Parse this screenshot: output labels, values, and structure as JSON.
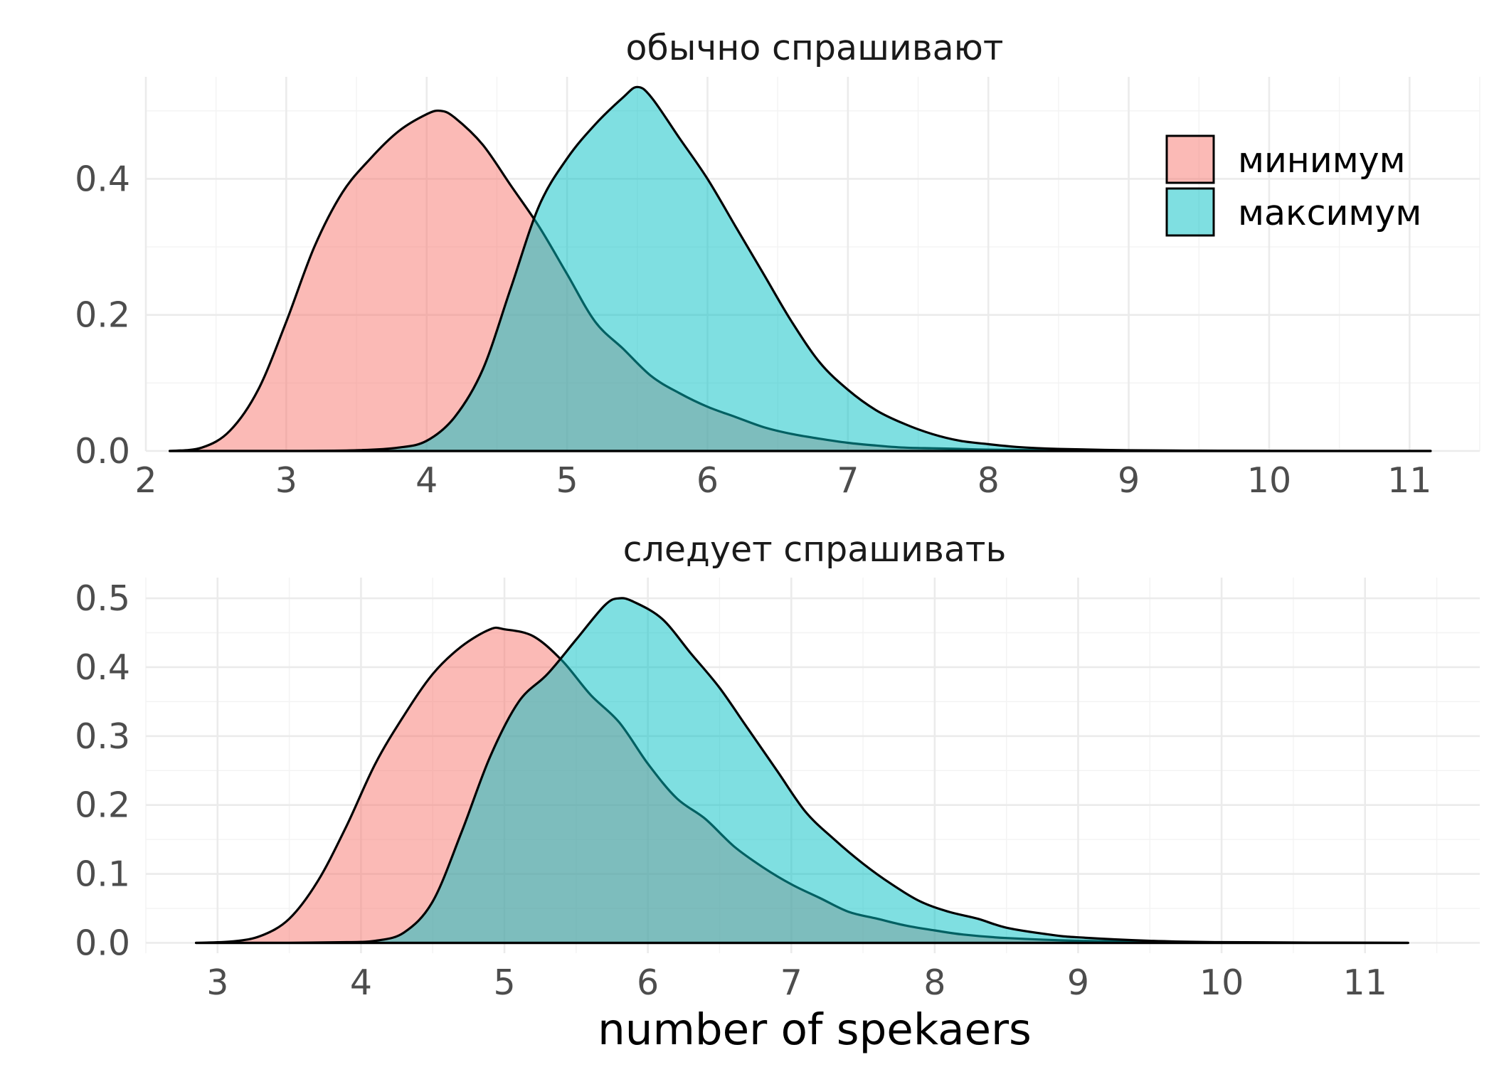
{
  "chart_data": {
    "type": "area",
    "xlabel": "number of spekaers",
    "legend": {
      "position": "top-right of first panel",
      "entries": [
        {
          "label": "минимум",
          "color": "#F8766D"
        },
        {
          "label": "максимум",
          "color": "#00BFC4"
        }
      ]
    },
    "grid": true,
    "panels": [
      {
        "title": "обычно спрашивают",
        "xlim": [
          2.0,
          11.5
        ],
        "ylim": [
          0.0,
          0.55
        ],
        "x_ticks": [
          2,
          3,
          4,
          5,
          6,
          7,
          8,
          9,
          10,
          11
        ],
        "y_ticks": [
          0.0,
          0.2,
          0.4
        ],
        "series": [
          {
            "name": "минимум",
            "color": "#F8766D",
            "x": [
              2.17,
              2.4,
              2.6,
              2.8,
              3.0,
              3.2,
              3.4,
              3.6,
              3.8,
              4.0,
              4.1,
              4.2,
              4.4,
              4.6,
              4.8,
              5.0,
              5.2,
              5.4,
              5.6,
              5.8,
              6.0,
              6.2,
              6.4,
              6.6,
              6.8,
              7.0,
              7.2,
              7.4,
              7.6,
              7.8,
              8.0,
              8.5,
              9.0,
              9.5,
              10.0,
              11.15
            ],
            "y": [
              0.0,
              0.005,
              0.03,
              0.09,
              0.19,
              0.3,
              0.38,
              0.43,
              0.47,
              0.495,
              0.5,
              0.49,
              0.45,
              0.39,
              0.33,
              0.26,
              0.19,
              0.15,
              0.11,
              0.085,
              0.065,
              0.05,
              0.035,
              0.025,
              0.018,
              0.012,
              0.008,
              0.005,
              0.004,
              0.003,
              0.002,
              0.001,
              0.0005,
              0.0002,
              0.0,
              0.0
            ]
          },
          {
            "name": "максимум",
            "color": "#00BFC4",
            "x": [
              2.17,
              3.0,
              3.5,
              3.8,
              4.0,
              4.2,
              4.4,
              4.6,
              4.8,
              5.0,
              5.2,
              5.4,
              5.5,
              5.6,
              5.8,
              6.0,
              6.2,
              6.4,
              6.6,
              6.8,
              7.0,
              7.2,
              7.4,
              7.6,
              7.8,
              8.0,
              8.2,
              8.5,
              9.0,
              9.5,
              10.0,
              11.15
            ],
            "y": [
              0.0,
              0.0,
              0.001,
              0.005,
              0.015,
              0.05,
              0.12,
              0.24,
              0.36,
              0.43,
              0.48,
              0.52,
              0.535,
              0.52,
              0.46,
              0.4,
              0.33,
              0.26,
              0.19,
              0.13,
              0.09,
              0.06,
              0.04,
              0.025,
              0.015,
              0.01,
              0.006,
              0.003,
              0.001,
              0.0005,
              0.0002,
              0.0
            ]
          }
        ]
      },
      {
        "title": "следует спрашивать",
        "xlim": [
          2.5,
          11.8
        ],
        "ylim": [
          -0.015,
          0.53
        ],
        "x_ticks": [
          3,
          4,
          5,
          6,
          7,
          8,
          9,
          10,
          11
        ],
        "y_ticks": [
          0.0,
          0.1,
          0.2,
          0.3,
          0.4,
          0.5
        ],
        "series": [
          {
            "name": "минимум",
            "color": "#F8766D",
            "x": [
              2.85,
              3.1,
              3.3,
              3.5,
              3.7,
              3.9,
              4.1,
              4.3,
              4.5,
              4.7,
              4.9,
              5.0,
              5.2,
              5.4,
              5.6,
              5.8,
              6.0,
              6.2,
              6.4,
              6.6,
              6.8,
              7.0,
              7.2,
              7.4,
              7.6,
              7.8,
              8.0,
              8.2,
              8.5,
              9.0,
              9.5,
              10.0,
              11.3
            ],
            "y": [
              0.0,
              0.002,
              0.01,
              0.035,
              0.09,
              0.17,
              0.26,
              0.33,
              0.39,
              0.43,
              0.455,
              0.455,
              0.445,
              0.41,
              0.36,
              0.32,
              0.26,
              0.21,
              0.18,
              0.14,
              0.11,
              0.085,
              0.065,
              0.045,
              0.035,
              0.025,
              0.018,
              0.012,
              0.007,
              0.003,
              0.0015,
              0.0005,
              0.0
            ]
          },
          {
            "name": "максимум",
            "color": "#00BFC4",
            "x": [
              2.85,
              3.5,
              3.9,
              4.1,
              4.3,
              4.5,
              4.7,
              4.9,
              5.1,
              5.3,
              5.5,
              5.7,
              5.8,
              5.9,
              6.1,
              6.3,
              6.5,
              6.7,
              6.9,
              7.1,
              7.3,
              7.5,
              7.7,
              7.9,
              8.1,
              8.3,
              8.5,
              8.8,
              9.0,
              9.5,
              10.0,
              11.3
            ],
            "y": [
              0.0,
              0.0,
              0.001,
              0.003,
              0.015,
              0.06,
              0.16,
              0.27,
              0.35,
              0.39,
              0.44,
              0.49,
              0.5,
              0.495,
              0.47,
              0.42,
              0.37,
              0.31,
              0.25,
              0.19,
              0.15,
              0.115,
              0.085,
              0.06,
              0.045,
              0.035,
              0.022,
              0.012,
              0.008,
              0.003,
              0.001,
              0.0
            ]
          }
        ]
      }
    ]
  }
}
